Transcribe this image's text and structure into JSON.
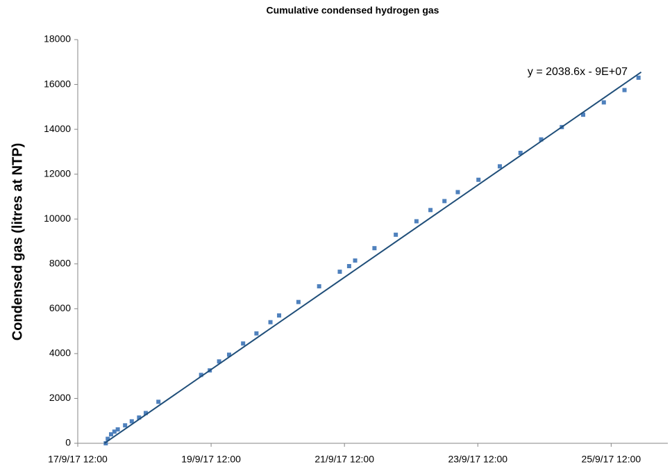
{
  "chart_data": {
    "type": "scatter",
    "title": "Cumulative condensed hydrogen gas",
    "y_label": "Condensed gas (litres at NTP)",
    "xlim": [
      43000.5,
      43009.35
    ],
    "ylim": [
      0,
      18000
    ],
    "xticks": [
      {
        "value": 43000.5,
        "label": "17/9/17 12:00"
      },
      {
        "value": 43002.5,
        "label": "19/9/17 12:00"
      },
      {
        "value": 43004.5,
        "label": "21/9/17 12:00"
      },
      {
        "value": 43006.5,
        "label": "23/9/17 12:00"
      },
      {
        "value": 43008.5,
        "label": "25/9/17 12:00"
      }
    ],
    "yticks": [
      0,
      2000,
      4000,
      6000,
      8000,
      10000,
      12000,
      14000,
      16000,
      18000
    ],
    "grid": false,
    "series": [
      {
        "color": "#4f81bd",
        "x": [
          43000.92,
          43000.95,
          43001.0,
          43001.05,
          43001.1,
          43001.21,
          43001.31,
          43001.42,
          43001.52,
          43001.71,
          43002.35,
          43002.48,
          43002.62,
          43002.77,
          43002.98,
          43003.18,
          43003.39,
          43003.52,
          43003.81,
          43004.12,
          43004.43,
          43004.57,
          43004.66,
          43004.95,
          43005.27,
          43005.58,
          43005.79,
          43006.0,
          43006.2,
          43006.51,
          43006.83,
          43007.14,
          43007.45,
          43007.76,
          43008.08,
          43008.39,
          43008.7,
          43008.91
        ],
        "values": [
          0,
          200,
          400,
          520,
          620,
          800,
          980,
          1150,
          1350,
          1850,
          3050,
          3250,
          3650,
          3950,
          4450,
          4900,
          5400,
          5700,
          6300,
          7000,
          7650,
          7900,
          8150,
          8700,
          9300,
          9900,
          10400,
          10800,
          11200,
          11750,
          12350,
          12950,
          13550,
          14100,
          14650,
          15200,
          15750,
          16300
        ]
      }
    ],
    "trendline": {
      "label": "y = 2038.6x - 9E+07",
      "color": "#1f4e79",
      "x": [
        43000.9,
        43008.95
      ],
      "values": [
        0,
        16550
      ]
    }
  }
}
